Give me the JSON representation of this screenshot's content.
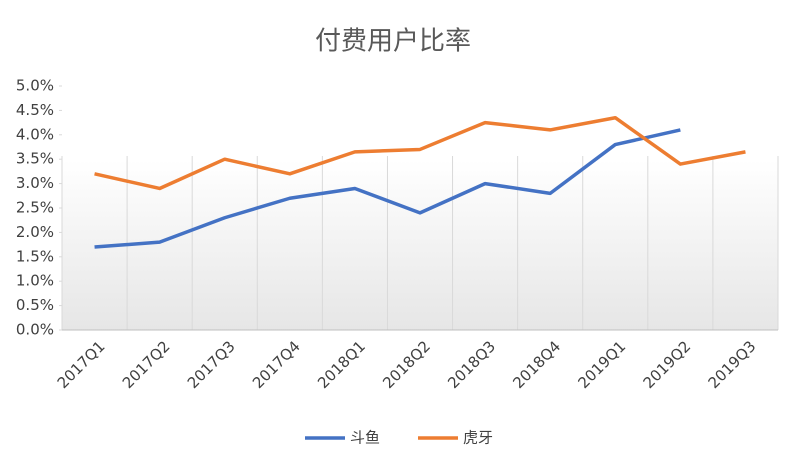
{
  "chart_data": {
    "type": "line",
    "title": "付费用户比率",
    "categories": [
      "2017Q1",
      "2017Q2",
      "2017Q3",
      "2017Q4",
      "2018Q1",
      "2018Q2",
      "2018Q3",
      "2018Q4",
      "2019Q1",
      "2019Q2",
      "2019Q3"
    ],
    "series": [
      {
        "name": "斗鱼",
        "color": "#4472c4",
        "values": [
          1.7,
          1.8,
          2.3,
          2.7,
          2.9,
          2.4,
          3.0,
          2.8,
          3.8,
          4.1,
          null
        ]
      },
      {
        "name": "虎牙",
        "color": "#ed7d31",
        "values": [
          3.2,
          2.9,
          3.5,
          3.2,
          3.65,
          3.7,
          4.25,
          4.1,
          4.35,
          3.4,
          3.65
        ]
      }
    ],
    "ylim": [
      0,
      5
    ],
    "yticks": [
      {
        "value": 0,
        "label": "0.0%"
      },
      {
        "value": 0.5,
        "label": "0.5%"
      },
      {
        "value": 1,
        "label": "1.0%"
      },
      {
        "value": 1.5,
        "label": "1.5%"
      },
      {
        "value": 2,
        "label": "2.0%"
      },
      {
        "value": 2.5,
        "label": "2.5%"
      },
      {
        "value": 3,
        "label": "3.0%"
      },
      {
        "value": 3.5,
        "label": "3.5%"
      },
      {
        "value": 4,
        "label": "4.0%"
      },
      {
        "value": 4.5,
        "label": "4.5%"
      },
      {
        "value": 5,
        "label": "5.0%"
      }
    ],
    "legend": "bottom"
  }
}
